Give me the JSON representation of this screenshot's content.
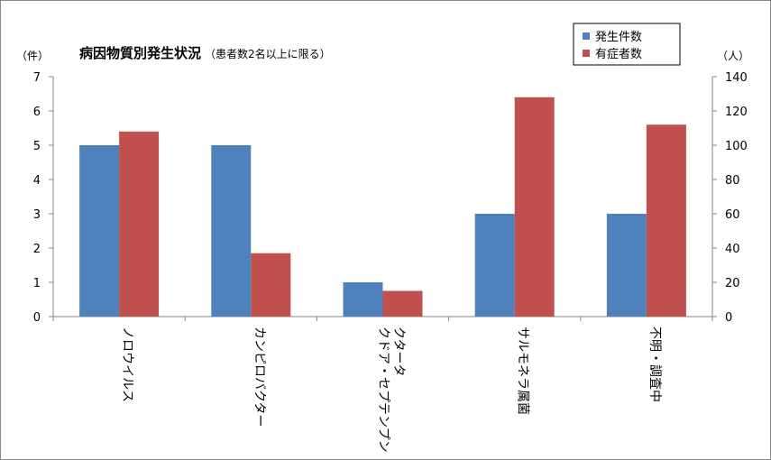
{
  "chart_data": {
    "type": "bar",
    "title": "病因物質別発生状況",
    "subtitle": "（患者数2名以上に限る）",
    "categories": [
      [
        "ノロウイルス"
      ],
      [
        "カンピロバクター"
      ],
      [
        "クドア・セプテンプン",
        "クタータ"
      ],
      [
        "サルモネラ属菌"
      ],
      [
        "不明・調査中"
      ]
    ],
    "series": [
      {
        "name": "発生件数",
        "axis": "left",
        "color": "#4f81bd",
        "values": [
          5,
          5,
          1,
          3,
          3
        ]
      },
      {
        "name": "有症者数",
        "axis": "right",
        "color": "#c0504d",
        "values": [
          108,
          37,
          15,
          128,
          112
        ]
      }
    ],
    "y_left": {
      "unit": "（件）",
      "ylim": [
        0,
        7
      ],
      "ticks": [
        0,
        1,
        2,
        3,
        4,
        5,
        6,
        7
      ]
    },
    "y_right": {
      "unit": "（人）",
      "ylim": [
        0,
        140
      ],
      "ticks": [
        0,
        20,
        40,
        60,
        80,
        100,
        120,
        140
      ]
    },
    "grid": false,
    "legend_position": "top-right"
  }
}
